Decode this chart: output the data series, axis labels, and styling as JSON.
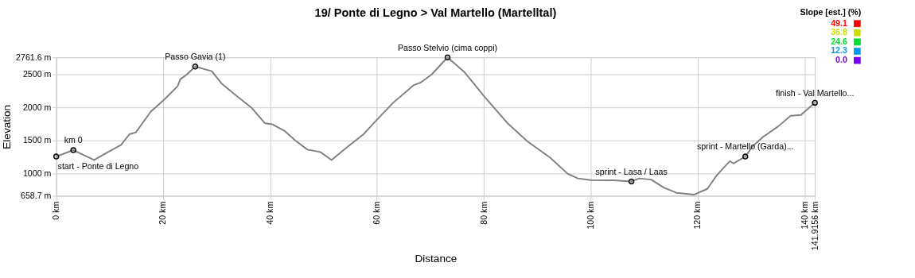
{
  "chart_data": {
    "type": "line",
    "title": "19/ Ponte di Legno > Val Martello (Martelltal)",
    "xlabel": "Distance",
    "ylabel": "Elevation",
    "series": [
      {
        "color": "#808080",
        "x": [
          0,
          3.2,
          7.1,
          9.7,
          12.1,
          13.7,
          14.9,
          17.7,
          20.1,
          22.7,
          23.2,
          24.4,
          26.0,
          29.1,
          31.0,
          33.1,
          36.6,
          39.0,
          40.4,
          42.8,
          44.7,
          47.0,
          49.4,
          51.5,
          54.1,
          57.4,
          59.8,
          63.1,
          66.9,
          68.1,
          70.2,
          73.2,
          76.4,
          80.1,
          84.4,
          88.2,
          92.4,
          95.7,
          97.6,
          100.0,
          104.3,
          107.6,
          109.0,
          111.3,
          113.7,
          116.0,
          119.3,
          121.8,
          123.6,
          126.0,
          126.7,
          128.9,
          130.3,
          132.2,
          135.0,
          137.4,
          139.3,
          141.9156
        ],
        "values": [
          1255,
          1352,
          1202,
          1324,
          1429,
          1594,
          1623,
          1938,
          2113,
          2323,
          2428,
          2499,
          2622,
          2551,
          2359,
          2218,
          1991,
          1763,
          1745,
          1640,
          1500,
          1360,
          1324,
          1202,
          1377,
          1587,
          1797,
          2078,
          2341,
          2376,
          2499,
          2761.6,
          2534,
          2165,
          1763,
          1482,
          1237,
          992,
          922,
          897,
          893,
          876,
          922,
          904,
          781,
          704,
          676,
          764,
          974,
          1184,
          1150,
          1255,
          1413,
          1552,
          1710,
          1875,
          1886,
          2071
        ]
      }
    ],
    "xlim": [
      0,
      141.9156
    ],
    "xticks": [
      {
        "value": 0,
        "label": "0 km"
      },
      {
        "value": 20,
        "label": "20 km"
      },
      {
        "value": 40,
        "label": "40 km"
      },
      {
        "value": 60,
        "label": "60 km"
      },
      {
        "value": 80,
        "label": "80 km"
      },
      {
        "value": 100,
        "label": "100 km"
      },
      {
        "value": 120,
        "label": "120 km"
      },
      {
        "value": 140,
        "label": "140 km"
      },
      {
        "value": 141.9156,
        "label": "141.9156 km"
      }
    ],
    "ylim": [
      658.7,
      2761.6
    ],
    "yticks": [
      {
        "value": 658.7,
        "label": "658.7 m"
      },
      {
        "value": 1000,
        "label": "1000 m"
      },
      {
        "value": 1500,
        "label": "1500 m"
      },
      {
        "value": 2000,
        "label": "2000 m"
      },
      {
        "value": 2500,
        "label": "2500 m"
      },
      {
        "value": 2761.6,
        "label": "2761.6 m"
      }
    ],
    "grid": true,
    "annotations": [
      {
        "text": "start - Ponte di Legno",
        "x": 0,
        "y": 1255
      },
      {
        "text": "km 0",
        "x": 3.2,
        "y": 1352
      },
      {
        "text": "Passo Gavia (1)",
        "x": 26.0,
        "y": 2622
      },
      {
        "text": "Passo Stelvio (cima coppi)",
        "x": 73.2,
        "y": 2761.6
      },
      {
        "text": "sprint - Lasa / Laas",
        "x": 107.6,
        "y": 876
      },
      {
        "text": "sprint - Martello (Garda)...",
        "x": 128.9,
        "y": 1255
      },
      {
        "text": "finish - Val Martello...",
        "x": 141.9156,
        "y": 2071
      }
    ],
    "clabel": "Slope [est.] (%)",
    "cticks": [
      49.1,
      36.8,
      24.6,
      12.3,
      {
        "value": 0,
        "label": "0.0"
      }
    ],
    "colors": [
      "#ff0000",
      "#ccdd00",
      "#00dd33",
      "#0099ee",
      "#7700ee"
    ]
  }
}
